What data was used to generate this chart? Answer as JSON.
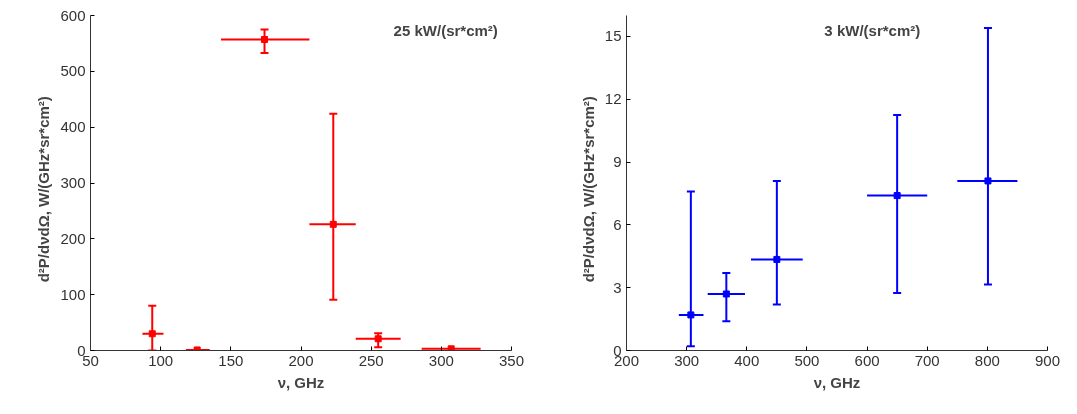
{
  "chart_data": [
    {
      "type": "scatter",
      "xlabel": "ν, GHz",
      "ylabel": "d²P/dνdΩ,    W/(GHz*sr*cm²)",
      "annotations": [
        "25 kW/(sr*cm²)"
      ],
      "marker": "square",
      "grid": false,
      "xlim": [
        50,
        350
      ],
      "xticks": [
        50,
        100,
        150,
        200,
        250,
        300,
        350
      ],
      "ylim": [
        0,
        600
      ],
      "yticks": [
        0,
        100,
        200,
        300,
        400,
        500,
        600
      ],
      "series": [
        {
          "color": "#ff0000",
          "x": [
            94,
            126,
            174,
            223,
            255,
            307
          ],
          "values": [
            30,
            1,
            557,
            226,
            21,
            3
          ],
          "errors": [
            [
              0,
              80
            ],
            null,
            [
              533,
              575
            ],
            [
              91,
              424
            ],
            [
              6,
              31
            ],
            null
          ],
          "xerrors": [
            [
              87,
              102
            ],
            [
              118,
              135
            ],
            [
              143,
              206
            ],
            [
              206,
              239
            ],
            [
              239,
              271
            ],
            [
              286,
              328
            ]
          ]
        }
      ]
    },
    {
      "type": "scatter",
      "xlabel": "ν, GHz",
      "ylabel": "d²P/dνdΩ,    W/(GHz*sr*cm²)",
      "annotations": [
        "3 kW/(sr*cm²)"
      ],
      "marker": "square",
      "grid": false,
      "xlim": [
        200,
        900
      ],
      "xticks": [
        200,
        300,
        400,
        500,
        600,
        700,
        800,
        900
      ],
      "ylim": [
        0,
        16
      ],
      "yticks": [
        0,
        3,
        6,
        9,
        12,
        15
      ],
      "series": [
        {
          "color": "#0000ff",
          "x": [
            307,
            366,
            450,
            650,
            801
          ],
          "values": [
            1.7,
            2.7,
            4.35,
            7.4,
            8.1
          ],
          "errors": [
            [
              0.2,
              7.6
            ],
            [
              1.4,
              3.7
            ],
            [
              2.2,
              8.1
            ],
            [
              2.75,
              11.25
            ],
            [
              3.15,
              15.4
            ]
          ],
          "xerrors": [
            [
              287,
              328
            ],
            [
              335,
              397
            ],
            [
              407,
              493
            ],
            [
              600,
              700
            ],
            [
              750,
              850
            ]
          ]
        }
      ]
    }
  ]
}
